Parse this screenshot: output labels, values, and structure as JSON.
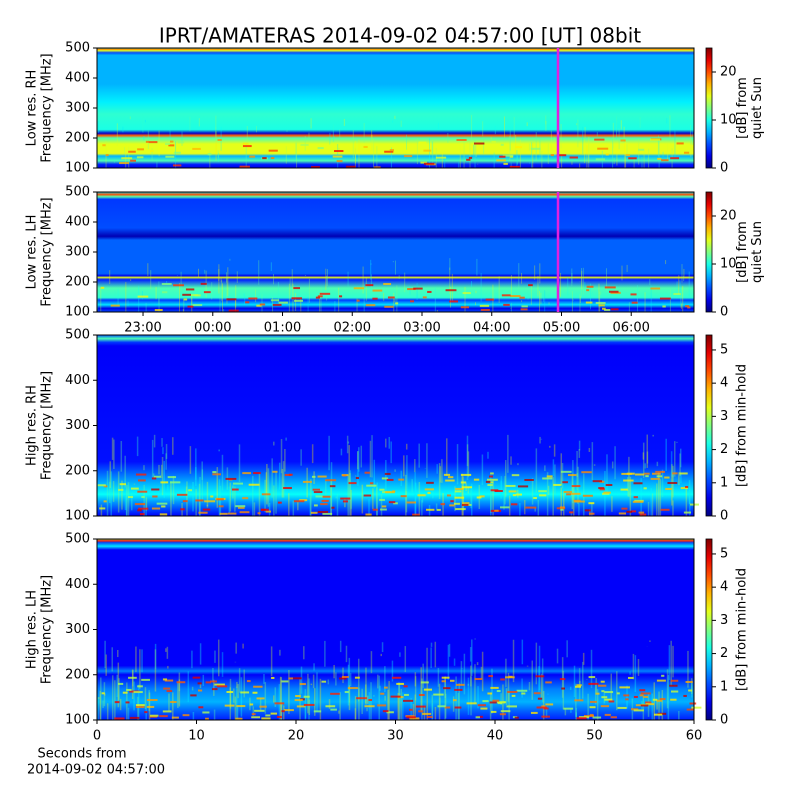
{
  "chart_data": [
    {
      "type": "heatmap",
      "title": "IPRT/AMATERAS 2014-09-02 04:57:00 [UT]   08bit",
      "ylabel": [
        "Low res. RH",
        "Frequency [MHz]"
      ],
      "ylim": [
        100,
        500
      ],
      "yticks": [
        100,
        200,
        300,
        400,
        500
      ],
      "xlim": [
        -1.66,
        6.9
      ],
      "marker_x": 4.95,
      "marker_color": "#e020e0",
      "colorbar_label": [
        "[dB] from",
        "quiet Sun"
      ],
      "clim": [
        0,
        25
      ],
      "cticks": [
        0,
        10,
        20
      ]
    },
    {
      "type": "heatmap",
      "ylabel": [
        "Low res. LH",
        "Frequency [MHz]"
      ],
      "ylim": [
        100,
        500
      ],
      "yticks": [
        100,
        200,
        300,
        400,
        500
      ],
      "xlim": [
        -1.66,
        6.9
      ],
      "xticks": [
        {
          "value": -1,
          "label": "23:00"
        },
        {
          "value": 0,
          "label": "00:00"
        },
        {
          "value": 1,
          "label": "01:00"
        },
        {
          "value": 2,
          "label": "02:00"
        },
        {
          "value": 3,
          "label": "03:00"
        },
        {
          "value": 4,
          "label": "04:00"
        },
        {
          "value": 5,
          "label": "05:00"
        },
        {
          "value": 6,
          "label": "06:00"
        }
      ],
      "marker_x": 4.95,
      "marker_color": "#e020e0",
      "colorbar_label": [
        "[dB] from",
        "quiet Sun"
      ],
      "clim": [
        0,
        25
      ],
      "cticks": [
        0,
        10,
        20
      ]
    },
    {
      "type": "heatmap",
      "ylabel": [
        "High res. RH",
        "Frequency [MHz]"
      ],
      "ylim": [
        100,
        500
      ],
      "yticks": [
        100,
        200,
        300,
        400,
        500
      ],
      "xlim": [
        0,
        60
      ],
      "colorbar_label": [
        "[dB] from min-hold"
      ],
      "clim": [
        0,
        5.45
      ],
      "cticks": [
        0,
        1,
        2,
        3,
        4,
        5
      ]
    },
    {
      "type": "heatmap",
      "ylabel": [
        "High res. LH",
        "Frequency [MHz]"
      ],
      "ylim": [
        100,
        500
      ],
      "yticks": [
        100,
        200,
        300,
        400,
        500
      ],
      "xlim": [
        0,
        60
      ],
      "xticks": [
        0,
        10,
        20,
        30,
        40,
        50,
        60
      ],
      "xlabel": [
        "Seconds from",
        "2014-09-02 04:57:00"
      ],
      "colorbar_label": [
        "[dB] from min-hold"
      ],
      "clim": [
        0,
        5.45
      ],
      "cticks": [
        0,
        1,
        2,
        3,
        4,
        5
      ]
    }
  ]
}
